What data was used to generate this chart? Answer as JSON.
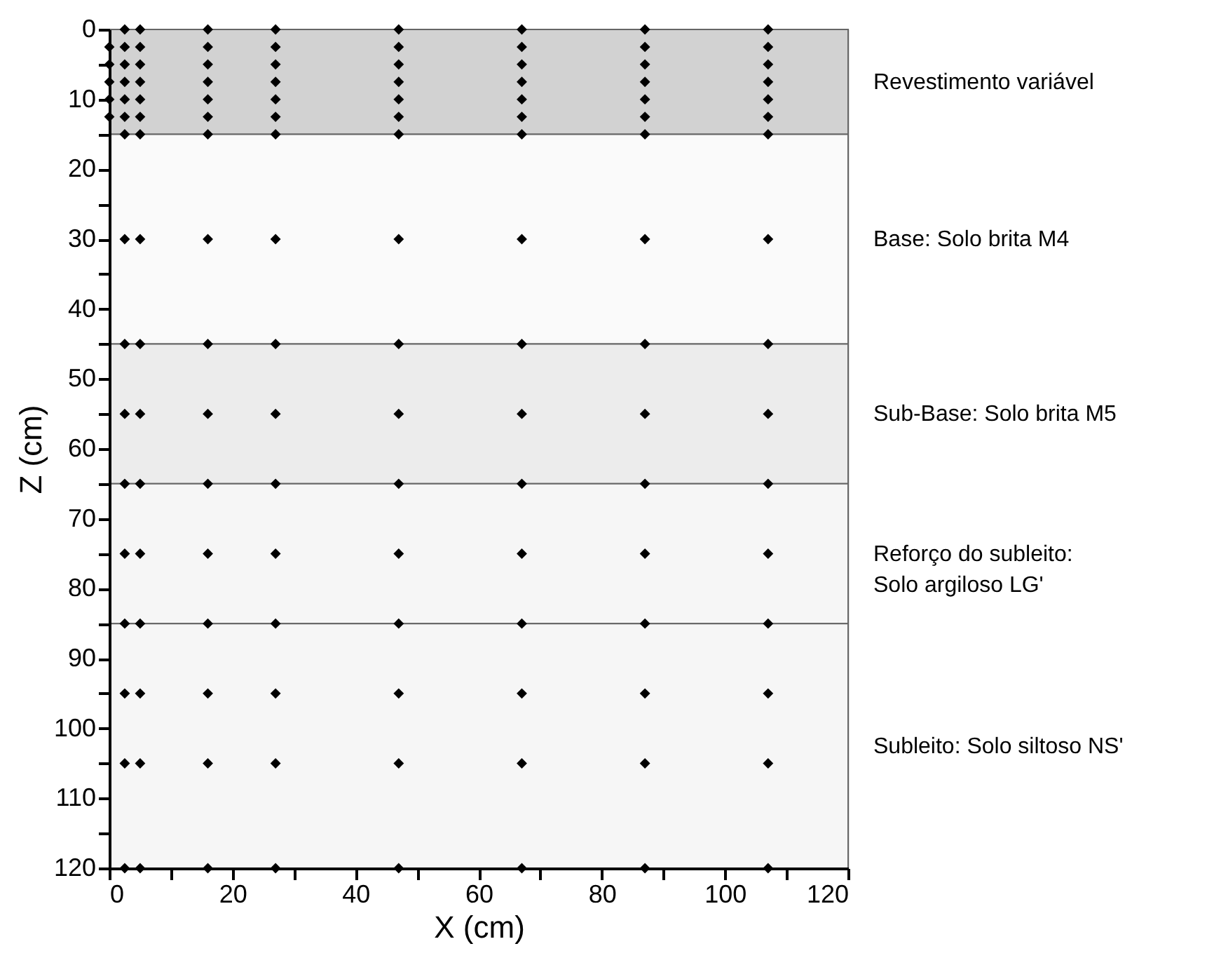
{
  "chart_data": {
    "type": "scatter",
    "xlabel": "X (cm)",
    "ylabel": "Z (cm)",
    "xlim": [
      0,
      120
    ],
    "ylim": [
      120,
      0
    ],
    "xticks": [
      0,
      {
        "value": 10,
        "label": null
      },
      20,
      {
        "value": 30,
        "label": null
      },
      40,
      {
        "value": 50,
        "label": null
      },
      60,
      {
        "value": 70,
        "label": null
      },
      80,
      {
        "value": 90,
        "label": null
      },
      100,
      {
        "value": 110,
        "label": null
      },
      120
    ],
    "yticks": [
      0,
      {
        "value": 5,
        "label": null
      },
      10,
      {
        "value": 15,
        "label": null
      },
      20,
      {
        "value": 25,
        "label": null
      },
      30,
      {
        "value": 35,
        "label": null
      },
      40,
      {
        "value": 45,
        "label": null
      },
      50,
      {
        "value": 55,
        "label": null
      },
      60,
      {
        "value": 65,
        "label": null
      },
      70,
      {
        "value": 75,
        "label": null
      },
      80,
      {
        "value": 85,
        "label": null
      },
      90,
      {
        "value": 95,
        "label": null
      },
      100,
      {
        "value": 105,
        "label": null
      },
      110,
      {
        "value": 115,
        "label": null
      },
      120
    ],
    "grid": false,
    "marker": "diamond",
    "series": [
      {
        "color": "#000000",
        "x": [
          0,
          0,
          0,
          0,
          0,
          2.5,
          2.5,
          2.5,
          2.5,
          2.5,
          2.5,
          2.5,
          5,
          5,
          5,
          5,
          5,
          5,
          5,
          16,
          16,
          16,
          16,
          16,
          16,
          16,
          27,
          27,
          27,
          27,
          27,
          27,
          27,
          47,
          47,
          47,
          47,
          47,
          47,
          47,
          67,
          67,
          67,
          67,
          67,
          67,
          67,
          87,
          87,
          87,
          87,
          87,
          87,
          87,
          107,
          107,
          107,
          107,
          107,
          107,
          107
        ],
        "values": [
          2.5,
          5,
          7.5,
          10,
          12.5,
          0,
          2.5,
          5,
          7.5,
          10,
          12.5,
          15,
          0,
          2.5,
          5,
          7.5,
          10,
          12.5,
          15,
          0,
          2.5,
          5,
          7.5,
          10,
          12.5,
          15,
          0,
          2.5,
          5,
          7.5,
          10,
          12.5,
          15,
          0,
          2.5,
          5,
          7.5,
          10,
          12.5,
          15,
          0,
          2.5,
          5,
          7.5,
          10,
          12.5,
          15,
          0,
          2.5,
          5,
          7.5,
          10,
          12.5,
          15,
          0,
          2.5,
          5,
          7.5,
          10,
          12.5,
          15
        ]
      },
      {
        "color": "#000000",
        "x": [
          2.5,
          5,
          16,
          27,
          47,
          67,
          87,
          107,
          2.5,
          5,
          16,
          27,
          47,
          67,
          87,
          107,
          2.5,
          5,
          16,
          27,
          47,
          67,
          87,
          107,
          2.5,
          5,
          16,
          27,
          47,
          67,
          87,
          107,
          2.5,
          5,
          16,
          27,
          47,
          67,
          87,
          107,
          2.5,
          5,
          16,
          27,
          47,
          67,
          87,
          107,
          2.5,
          5,
          16,
          27,
          47,
          67,
          87,
          107,
          2.5,
          5,
          16,
          27,
          47,
          67,
          87,
          107,
          2.5,
          5,
          16,
          27,
          47,
          67,
          87,
          107
        ],
        "values": [
          30,
          30,
          30,
          30,
          30,
          30,
          30,
          30,
          45,
          45,
          45,
          45,
          45,
          45,
          45,
          45,
          55,
          55,
          55,
          55,
          55,
          55,
          55,
          55,
          65,
          65,
          65,
          65,
          65,
          65,
          65,
          65,
          75,
          75,
          75,
          75,
          75,
          75,
          75,
          75,
          85,
          85,
          85,
          85,
          85,
          85,
          85,
          85,
          95,
          95,
          95,
          95,
          95,
          95,
          95,
          95,
          105,
          105,
          105,
          105,
          105,
          105,
          105,
          105,
          120,
          120,
          120,
          120,
          120,
          120,
          120,
          120
        ]
      }
    ],
    "bands": [
      {
        "axis": "y",
        "from": 0,
        "to": 15,
        "label": "Revestimento variável",
        "color": "#d2d2d2"
      },
      {
        "axis": "y",
        "from": 15,
        "to": 45,
        "label": "Base: Solo brita M4",
        "color": "#fafafa"
      },
      {
        "axis": "y",
        "from": 45,
        "to": 65,
        "label": "Sub-Base: Solo brita M5",
        "color": "#ececec"
      },
      {
        "axis": "y",
        "from": 65,
        "to": 85,
        "label": "Reforço do subleito:\n Solo argiloso LG'",
        "color": "#f6f6f6"
      },
      {
        "axis": "y",
        "from": 85,
        "to": 120,
        "label": "Subleito: Solo siltoso NS'",
        "color": "#f6f6f6"
      }
    ]
  }
}
